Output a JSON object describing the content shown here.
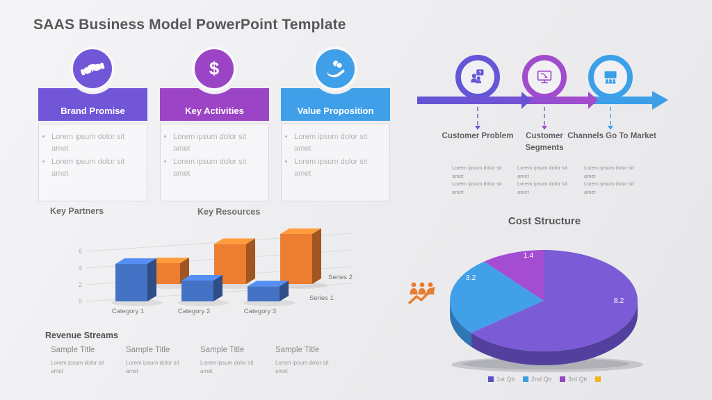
{
  "slide_title": "SAAS Business Model PowerPoint Template",
  "cards": [
    {
      "title": "Brand Promise",
      "icon": "handshake-icon",
      "color": "#7156d8",
      "bullets": [
        "Lorem ipsum dolor sit amet",
        "Lorem ipsum dolor sit amet"
      ]
    },
    {
      "title": "Key Activities",
      "icon": "dollar-icon",
      "color": "#9c44c6",
      "bullets": [
        "Lorem ipsum dolor sit amet",
        "Lorem ipsum dolor sit amet"
      ]
    },
    {
      "title": "Value Proposition",
      "icon": "hand-coins-icon",
      "color": "#3f9fe8",
      "bullets": [
        "Lorem ipsum dolor sit amet",
        "Lorem ipsum dolor sit amet"
      ]
    }
  ],
  "timeline": [
    {
      "title": "Customer Problem",
      "icon": "people-question-icon",
      "color": "#6456d8",
      "desc": [
        "Lorem ipsum dolor sit amet",
        "Lorem ipsum dolor sit amet"
      ]
    },
    {
      "title": "Customer Segments",
      "icon": "monitor-pointer-icon",
      "color": "#a04ccc",
      "desc": [
        "Lorem ipsum dolor sit amet",
        "Lorem ipsum dolor sit amet"
      ]
    },
    {
      "title": "Channels Go To Market",
      "icon": "presentation-audience-icon",
      "color": "#3ba0e8",
      "desc": [
        "Lorem ipsum dolor sit amet",
        "Lorem ipsum dolor sit amet"
      ]
    }
  ],
  "sections": {
    "key_partners": "Key Partners",
    "key_resources": "Key Resources",
    "revenue_streams": "Revenue Streams"
  },
  "revenue_items": [
    {
      "title": "Sample Title",
      "text": "Lorem ipsum dolor sit amet"
    },
    {
      "title": "Sample Title",
      "text": "Lorem ipsum dolor sit amet"
    },
    {
      "title": "Sample Title",
      "text": "Lorem ipsum dolor sit amet"
    },
    {
      "title": "Sample Title",
      "text": "Lorem ipsum dolor sit amet"
    }
  ],
  "chart_data": [
    {
      "type": "bar",
      "variant": "3d-column",
      "title": "",
      "categories": [
        "Category 1",
        "Category 2",
        "Category 3"
      ],
      "series": [
        {
          "name": "Series 1",
          "values": [
            4.5,
            2.5,
            1.8
          ],
          "color": "#4472C4"
        },
        {
          "name": "Series 2",
          "values": [
            2.5,
            4.8,
            6.0
          ],
          "color": "#ED7D31"
        }
      ],
      "yticks": [
        0,
        2,
        4,
        6
      ],
      "ylim": [
        0,
        6
      ],
      "grid": true,
      "legend_position": "right-inline"
    },
    {
      "type": "pie",
      "variant": "3d",
      "title": "Cost Structure",
      "labels": [
        "1st Qtr",
        "2nd Qtr",
        "3rd Qtr"
      ],
      "values": [
        8.2,
        3.2,
        1.4
      ],
      "colors": [
        "#7b5cd6",
        "#41a0e8",
        "#a44cd2"
      ],
      "side_colors": [
        "#53409e",
        "#2d77b5",
        "#7a3aa0"
      ],
      "legend_position": "bottom",
      "legend": [
        {
          "label": "1st Qtr",
          "color": "#5b50c8"
        },
        {
          "label": "2nd Qtr",
          "color": "#3f9fe0"
        },
        {
          "label": "3rd Qtr",
          "color": "#9446c8"
        },
        {
          "label": "",
          "color": "#f0b41e"
        }
      ]
    }
  ]
}
